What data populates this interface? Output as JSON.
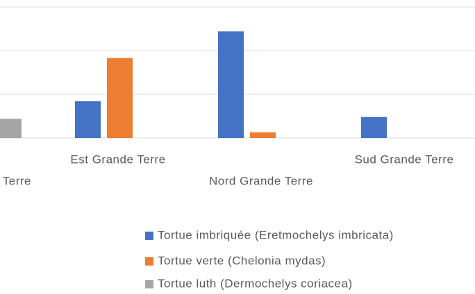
{
  "chart_data": {
    "type": "bar",
    "categories": [
      "Terre",
      "Est Grande Terre",
      "Nord Grande Terre",
      "Sud Grande Terre"
    ],
    "series": [
      {
        "name": "Tortue imbriquée (Eretmochelys imbricata)",
        "color": "#4472c4",
        "values": [
          null,
          0.84,
          2.44,
          0.48
        ]
      },
      {
        "name": "Tortue verte (Chelonia mydas)",
        "color": "#ed7d31",
        "values": [
          null,
          1.83,
          0.13,
          0
        ]
      },
      {
        "name": "Tortue luth (Dermochelys coriacea)",
        "color": "#a5a5a5",
        "values": [
          0.44,
          0,
          0,
          0
        ]
      }
    ],
    "ylim": [
      0,
      3
    ],
    "yticks": [
      0,
      1,
      2,
      3
    ],
    "grid": true
  }
}
